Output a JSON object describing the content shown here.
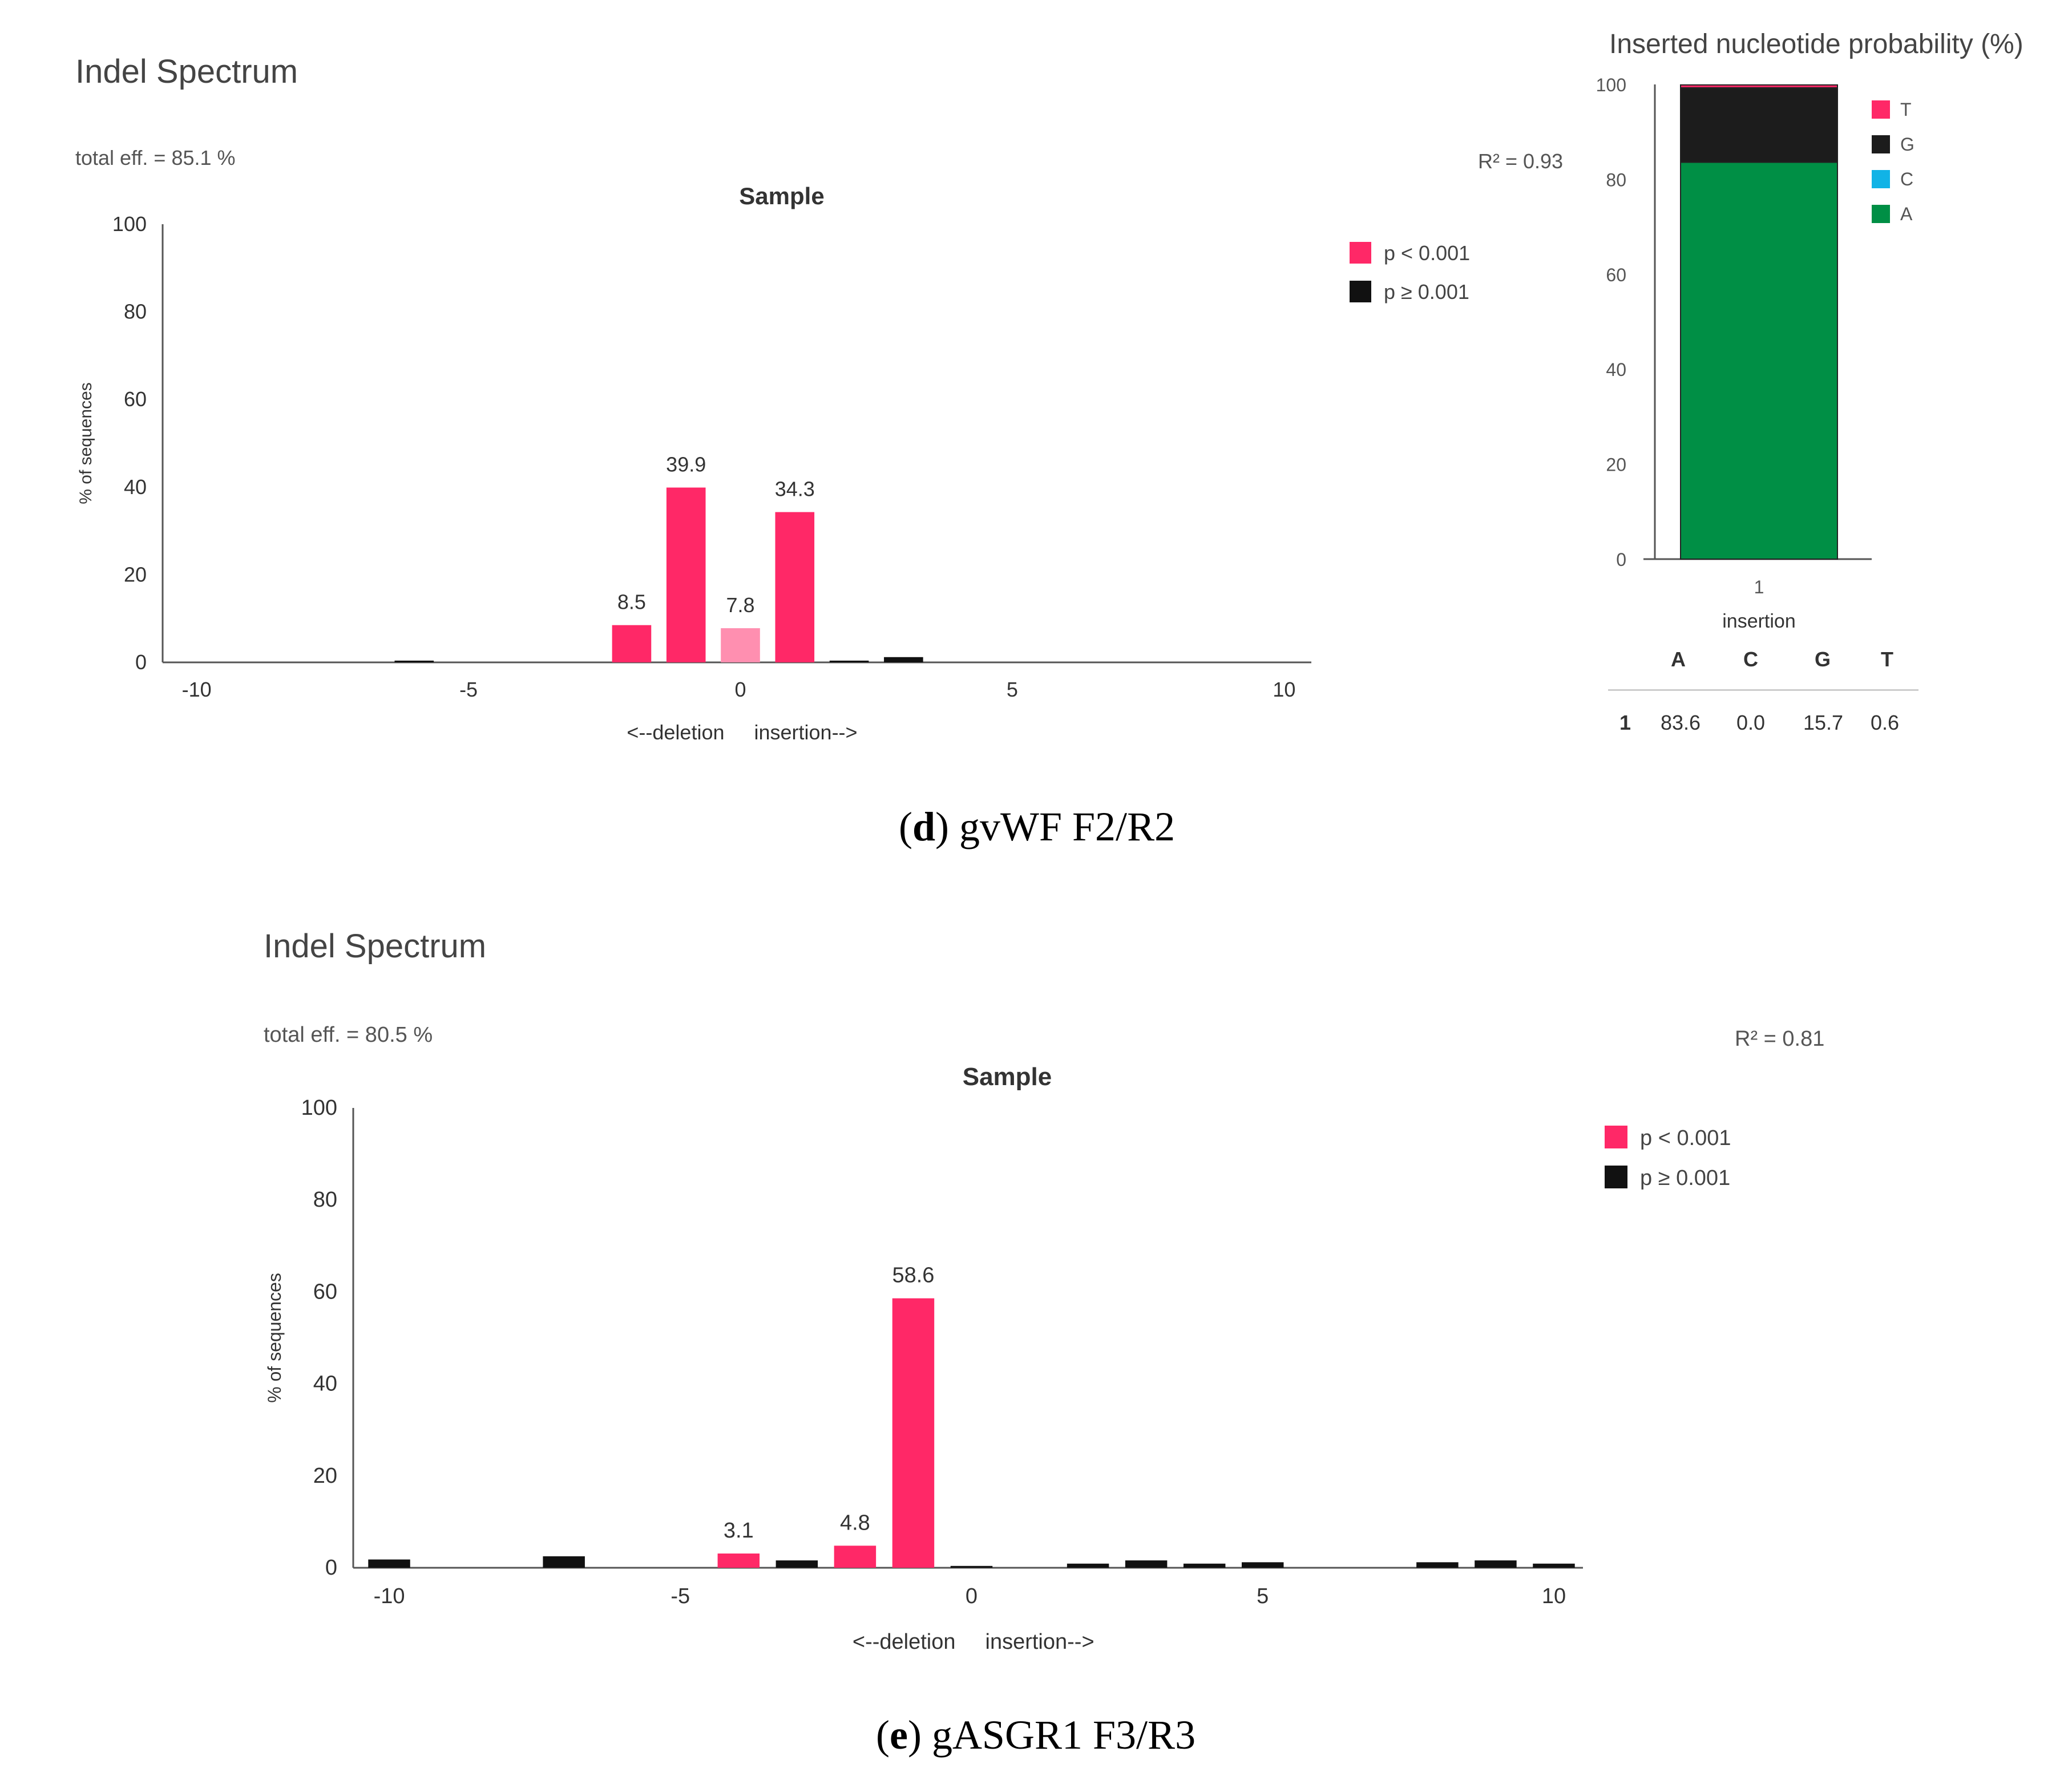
{
  "colors": {
    "sig": "#ff2867",
    "sig_light": "#ff8fb0",
    "nonsig": "#111111",
    "T": "#ff2867",
    "G": "#1c1c1c",
    "C": "#11b3e6",
    "A": "#008f45",
    "axis": "#555555"
  },
  "panel_d": {
    "title": "Indel Spectrum",
    "total_eff": "total eff. = 85.1 %",
    "r2": "R² = 0.93",
    "caption_letter": "d",
    "caption_text": "gvWF F2/R2"
  },
  "panel_e": {
    "title": "Indel Spectrum",
    "total_eff": "total eff. = 80.5 %",
    "r2": "R² = 0.81",
    "caption_letter": "e",
    "caption_text": "gASGR1 F3/R3"
  },
  "nucleotide": {
    "title": "Inserted nucleotide probability (%)",
    "table_header": [
      "A",
      "C",
      "G",
      "T"
    ],
    "table_row_label": "1",
    "table_row_values": [
      "83.6",
      "0.0",
      "15.7",
      "0.6"
    ]
  },
  "chart_data": [
    {
      "id": "d-indel",
      "type": "bar",
      "title": "Sample",
      "ylabel": "% of sequences",
      "xlabel_left": "<--deletion",
      "xlabel_right": "insertion-->",
      "xlim": [
        -10.5,
        10.5
      ],
      "ylim": [
        0,
        100
      ],
      "xticks": [
        -10,
        -5,
        0,
        5,
        10
      ],
      "yticks": [
        0,
        20,
        40,
        60,
        80,
        100
      ],
      "legend": [
        "p < 0.001",
        "p ≥ 0.001"
      ],
      "legend_position": "right",
      "bars": [
        {
          "x": -6,
          "value": 0.4,
          "group": "nonsig",
          "label": ""
        },
        {
          "x": -2,
          "value": 8.5,
          "group": "sig",
          "label": "8.5"
        },
        {
          "x": -1,
          "value": 39.9,
          "group": "sig",
          "label": "39.9"
        },
        {
          "x": 0,
          "value": 7.8,
          "group": "sig_light",
          "label": "7.8"
        },
        {
          "x": 1,
          "value": 34.3,
          "group": "sig",
          "label": "34.3"
        },
        {
          "x": 2,
          "value": 0.4,
          "group": "nonsig",
          "label": ""
        },
        {
          "x": 3,
          "value": 1.2,
          "group": "nonsig",
          "label": ""
        }
      ]
    },
    {
      "id": "d-nucleotide",
      "type": "bar",
      "stacked": true,
      "title": "Inserted nucleotide probability (%)",
      "categories": [
        "1"
      ],
      "xlabel": "insertion",
      "ylim": [
        0,
        100
      ],
      "yticks": [
        0,
        20,
        40,
        60,
        80,
        100
      ],
      "legend_position": "right",
      "series": [
        {
          "name": "A",
          "values": [
            83.6
          ]
        },
        {
          "name": "C",
          "values": [
            0.0
          ]
        },
        {
          "name": "G",
          "values": [
            15.7
          ]
        },
        {
          "name": "T",
          "values": [
            0.6
          ]
        }
      ],
      "legend_order": [
        "T",
        "G",
        "C",
        "A"
      ]
    },
    {
      "id": "e-indel",
      "type": "bar",
      "title": "Sample",
      "ylabel": "% of sequences",
      "xlabel_left": "<--deletion",
      "xlabel_right": "insertion-->",
      "xlim": [
        -10.5,
        10.5
      ],
      "ylim": [
        0,
        100
      ],
      "xticks": [
        -10,
        -5,
        0,
        5,
        10
      ],
      "yticks": [
        0,
        20,
        40,
        60,
        80,
        100
      ],
      "legend": [
        "p < 0.001",
        "p ≥ 0.001"
      ],
      "legend_position": "right",
      "bars": [
        {
          "x": -10,
          "value": 1.8,
          "group": "nonsig",
          "label": ""
        },
        {
          "x": -7,
          "value": 2.5,
          "group": "nonsig",
          "label": ""
        },
        {
          "x": -4,
          "value": 3.1,
          "group": "sig",
          "label": "3.1"
        },
        {
          "x": -3,
          "value": 1.6,
          "group": "nonsig",
          "label": ""
        },
        {
          "x": -2,
          "value": 4.8,
          "group": "sig",
          "label": "4.8"
        },
        {
          "x": -1,
          "value": 58.6,
          "group": "sig",
          "label": "58.6"
        },
        {
          "x": 0,
          "value": 0.4,
          "group": "nonsig",
          "label": ""
        },
        {
          "x": 2,
          "value": 0.9,
          "group": "nonsig",
          "label": ""
        },
        {
          "x": 3,
          "value": 1.6,
          "group": "nonsig",
          "label": ""
        },
        {
          "x": 4,
          "value": 0.9,
          "group": "nonsig",
          "label": ""
        },
        {
          "x": 5,
          "value": 1.2,
          "group": "nonsig",
          "label": ""
        },
        {
          "x": 8,
          "value": 1.2,
          "group": "nonsig",
          "label": ""
        },
        {
          "x": 9,
          "value": 1.6,
          "group": "nonsig",
          "label": ""
        },
        {
          "x": 10,
          "value": 0.9,
          "group": "nonsig",
          "label": ""
        }
      ]
    }
  ]
}
